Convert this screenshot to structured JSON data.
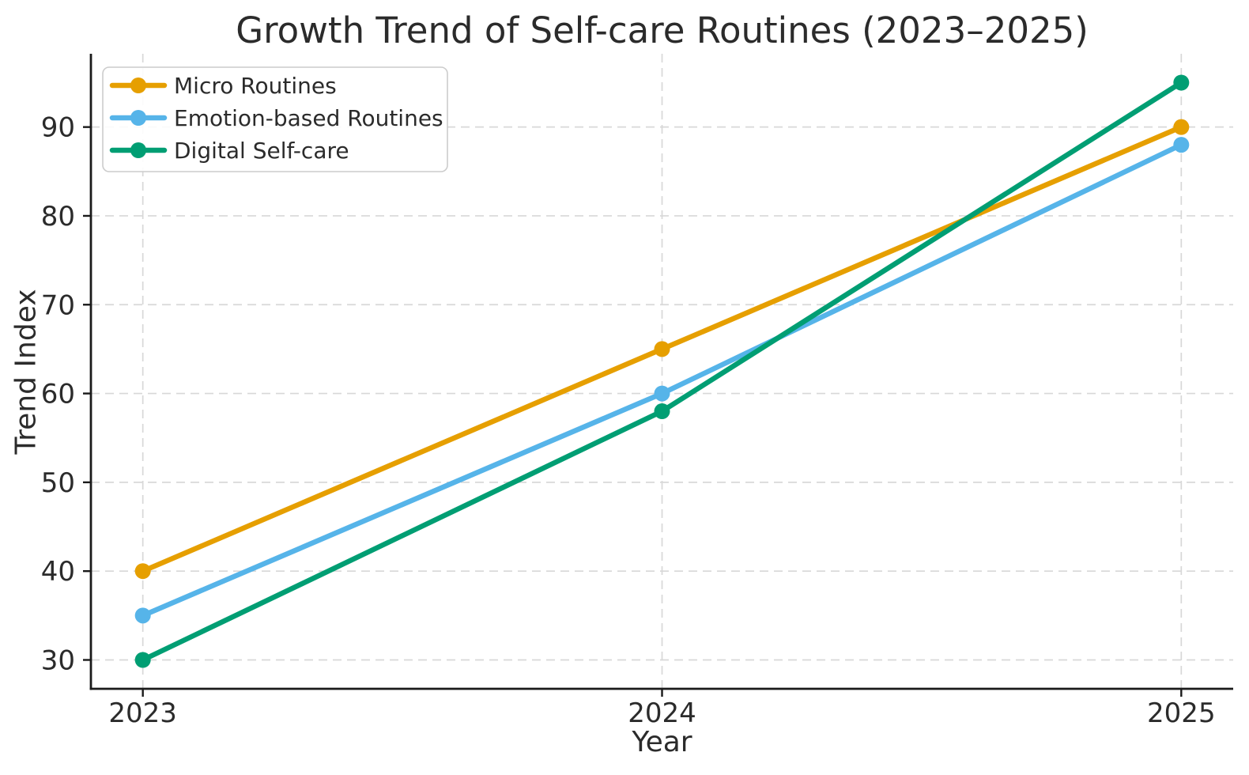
{
  "chart_data": {
    "type": "line",
    "title": "Growth Trend of Self-care Routines (2023–2025)",
    "xlabel": "Year",
    "ylabel": "Trend Index",
    "x": [
      2023,
      2024,
      2025
    ],
    "x_tick_labels": [
      "2023",
      "2024",
      "2025"
    ],
    "y_ticks": [
      30,
      40,
      50,
      60,
      70,
      80,
      90
    ],
    "xlim": [
      2022.9,
      2025.1
    ],
    "ylim": [
      26.75,
      98.25
    ],
    "grid": true,
    "grid_style": "dashed",
    "legend_position": "upper-left",
    "series": [
      {
        "name": "Micro Routines",
        "color": "#E69F00",
        "values": [
          40,
          65,
          90
        ]
      },
      {
        "name": "Emotion-based Routines",
        "color": "#56B4E9",
        "values": [
          35,
          60,
          88
        ]
      },
      {
        "name": "Digital Self-care",
        "color": "#009E73",
        "values": [
          30,
          58,
          95
        ]
      }
    ],
    "colors": {
      "grid": "#d8d8d8",
      "spine": "#1a1a1a",
      "text": "#2b2b2b",
      "legend_border": "#cccccc",
      "background": "#ffffff"
    }
  }
}
